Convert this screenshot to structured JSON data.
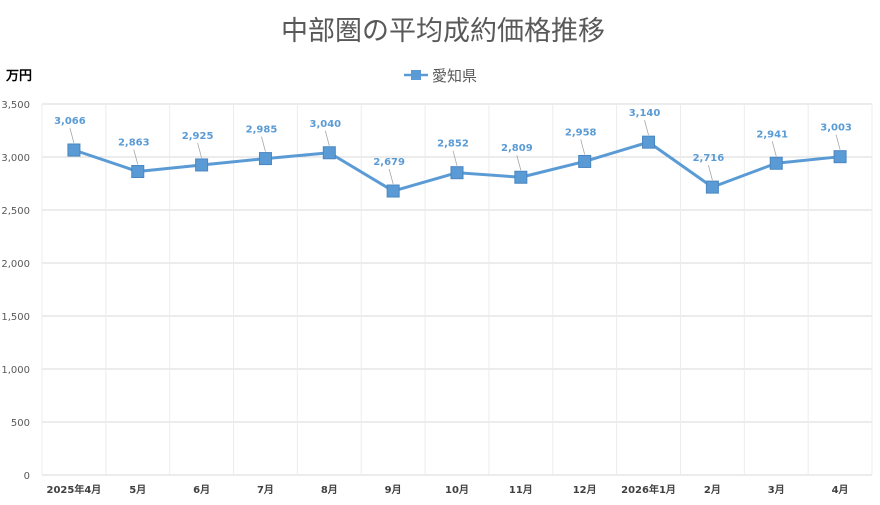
{
  "chart_data": {
    "type": "line",
    "title": "中部圏の平均成約価格推移",
    "ylabel": "万円",
    "ylim": [
      0,
      3500
    ],
    "ystep": 500,
    "yticks": [
      "0",
      "500",
      "1,000",
      "1,500",
      "2,000",
      "2,500",
      "3,000",
      "3,500"
    ],
    "grid": true,
    "legend_position": "top-center",
    "categories": [
      "2025年4月",
      "5月",
      "6月",
      "7月",
      "8月",
      "9月",
      "10月",
      "11月",
      "12月",
      "2026年1月",
      "2月",
      "3月",
      "4月"
    ],
    "series": [
      {
        "name": "愛知県",
        "color": "#5b9bd5",
        "marker": "square",
        "values": [
          3066,
          2863,
          2925,
          2985,
          3040,
          2679,
          2852,
          2809,
          2958,
          3140,
          2716,
          2941,
          3003
        ],
        "labels": [
          "3,066",
          "2,863",
          "2,925",
          "2,985",
          "3,040",
          "2,679",
          "2,852",
          "2,809",
          "2,958",
          "3,140",
          "2,716",
          "2,941",
          "3,003"
        ]
      }
    ],
    "colors": {
      "grid": "#d9d9d9",
      "axis_text": "#595959",
      "label_text": "#5b9bd5",
      "title_text": "#595959"
    }
  }
}
